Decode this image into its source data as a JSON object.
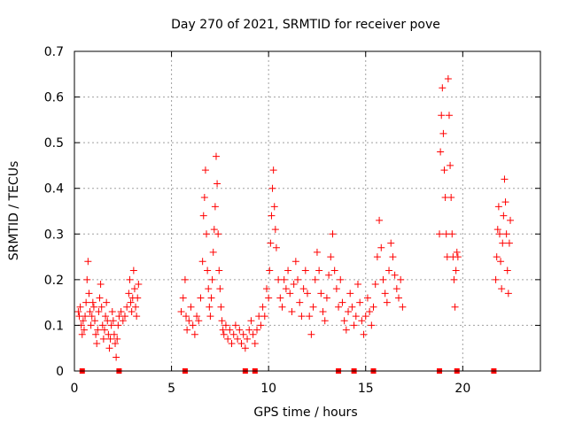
{
  "chart_data": {
    "type": "scatter",
    "title": "Day 270 of 2021, SRMTID for receiver pove",
    "xlabel": "GPS time / hours",
    "ylabel": "SRMTID / TECUs",
    "xlim": [
      0,
      24
    ],
    "ylim": [
      0,
      0.7
    ],
    "xticks": [
      0,
      5,
      10,
      15,
      20
    ],
    "yticks": [
      0,
      0.1,
      0.2,
      0.3,
      0.4,
      0.5,
      0.6,
      0.7
    ],
    "xtick_labels": [
      "0",
      "5",
      "10",
      "15",
      "20"
    ],
    "ytick_labels": [
      "0",
      "0.1",
      "0.2",
      "0.3",
      "0.4",
      "0.5",
      "0.6",
      "0.7"
    ],
    "grid": true,
    "marker": "plus",
    "color": "#ff0000",
    "series": [
      {
        "points": [
          [
            0.2,
            0.13
          ],
          [
            0.25,
            0.12
          ],
          [
            0.3,
            0.14
          ],
          [
            0.35,
            0.1
          ],
          [
            0.4,
            0.08
          ],
          [
            0.45,
            0.11
          ],
          [
            0.5,
            0.09
          ],
          [
            0.55,
            0.12
          ],
          [
            0.6,
            0.15
          ],
          [
            0.65,
            0.2
          ],
          [
            0.7,
            0.24
          ],
          [
            0.75,
            0.17
          ],
          [
            0.8,
            0.13
          ],
          [
            0.85,
            0.1
          ],
          [
            0.9,
            0.12
          ],
          [
            0.95,
            0.15
          ],
          [
            1.0,
            0.14
          ],
          [
            1.05,
            0.11
          ],
          [
            1.1,
            0.08
          ],
          [
            1.15,
            0.06
          ],
          [
            1.2,
            0.09
          ],
          [
            1.25,
            0.13
          ],
          [
            1.3,
            0.16
          ],
          [
            1.35,
            0.19
          ],
          [
            1.4,
            0.14
          ],
          [
            1.45,
            0.1
          ],
          [
            1.5,
            0.07
          ],
          [
            1.55,
            0.09
          ],
          [
            1.6,
            0.12
          ],
          [
            1.65,
            0.15
          ],
          [
            1.7,
            0.11
          ],
          [
            1.75,
            0.08
          ],
          [
            1.8,
            0.05
          ],
          [
            1.85,
            0.07
          ],
          [
            1.9,
            0.1
          ],
          [
            1.95,
            0.13
          ],
          [
            2.0,
            0.11
          ],
          [
            2.05,
            0.08
          ],
          [
            2.1,
            0.06
          ],
          [
            2.15,
            0.03
          ],
          [
            2.2,
            0.07
          ],
          [
            2.25,
            0.1
          ],
          [
            2.3,
            0.12
          ],
          [
            2.4,
            0.13
          ],
          [
            2.5,
            0.11
          ],
          [
            2.6,
            0.12
          ],
          [
            2.7,
            0.14
          ],
          [
            2.8,
            0.17
          ],
          [
            2.85,
            0.2
          ],
          [
            2.9,
            0.15
          ],
          [
            2.95,
            0.13
          ],
          [
            3.0,
            0.16
          ],
          [
            3.05,
            0.22
          ],
          [
            3.1,
            0.18
          ],
          [
            3.15,
            0.14
          ],
          [
            3.2,
            0.12
          ],
          [
            3.25,
            0.16
          ],
          [
            3.3,
            0.19
          ],
          [
            5.5,
            0.13
          ],
          [
            5.6,
            0.16
          ],
          [
            5.7,
            0.2
          ],
          [
            5.75,
            0.12
          ],
          [
            5.8,
            0.09
          ],
          [
            5.9,
            0.11
          ],
          [
            6.0,
            0.14
          ],
          [
            6.1,
            0.1
          ],
          [
            6.2,
            0.08
          ],
          [
            6.3,
            0.12
          ],
          [
            6.4,
            0.11
          ],
          [
            6.5,
            0.16
          ],
          [
            6.6,
            0.24
          ],
          [
            6.65,
            0.34
          ],
          [
            6.7,
            0.38
          ],
          [
            6.75,
            0.44
          ],
          [
            6.8,
            0.3
          ],
          [
            6.85,
            0.22
          ],
          [
            6.9,
            0.18
          ],
          [
            6.95,
            0.14
          ],
          [
            7.0,
            0.12
          ],
          [
            7.05,
            0.16
          ],
          [
            7.1,
            0.2
          ],
          [
            7.15,
            0.26
          ],
          [
            7.2,
            0.31
          ],
          [
            7.25,
            0.36
          ],
          [
            7.3,
            0.47
          ],
          [
            7.35,
            0.41
          ],
          [
            7.4,
            0.3
          ],
          [
            7.45,
            0.22
          ],
          [
            7.5,
            0.18
          ],
          [
            7.55,
            0.14
          ],
          [
            7.6,
            0.11
          ],
          [
            7.65,
            0.09
          ],
          [
            7.7,
            0.08
          ],
          [
            7.8,
            0.1
          ],
          [
            7.9,
            0.07
          ],
          [
            8.0,
            0.09
          ],
          [
            8.1,
            0.06
          ],
          [
            8.2,
            0.08
          ],
          [
            8.3,
            0.1
          ],
          [
            8.4,
            0.07
          ],
          [
            8.5,
            0.09
          ],
          [
            8.6,
            0.06
          ],
          [
            8.7,
            0.08
          ],
          [
            8.8,
            0.05
          ],
          [
            8.9,
            0.07
          ],
          [
            9.0,
            0.09
          ],
          [
            9.1,
            0.11
          ],
          [
            9.2,
            0.08
          ],
          [
            9.3,
            0.06
          ],
          [
            9.4,
            0.09
          ],
          [
            9.5,
            0.12
          ],
          [
            9.6,
            0.1
          ],
          [
            9.7,
            0.14
          ],
          [
            9.8,
            0.12
          ],
          [
            9.9,
            0.18
          ],
          [
            10.0,
            0.16
          ],
          [
            10.05,
            0.22
          ],
          [
            10.1,
            0.28
          ],
          [
            10.15,
            0.34
          ],
          [
            10.2,
            0.4
          ],
          [
            10.25,
            0.44
          ],
          [
            10.3,
            0.36
          ],
          [
            10.35,
            0.31
          ],
          [
            10.4,
            0.27
          ],
          [
            10.5,
            0.2
          ],
          [
            10.6,
            0.16
          ],
          [
            10.7,
            0.14
          ],
          [
            10.8,
            0.2
          ],
          [
            10.9,
            0.18
          ],
          [
            11.0,
            0.22
          ],
          [
            11.1,
            0.17
          ],
          [
            11.2,
            0.13
          ],
          [
            11.3,
            0.19
          ],
          [
            11.4,
            0.24
          ],
          [
            11.5,
            0.2
          ],
          [
            11.6,
            0.15
          ],
          [
            11.7,
            0.12
          ],
          [
            11.8,
            0.18
          ],
          [
            11.9,
            0.22
          ],
          [
            12.0,
            0.17
          ],
          [
            12.1,
            0.12
          ],
          [
            12.2,
            0.08
          ],
          [
            12.3,
            0.14
          ],
          [
            12.4,
            0.2
          ],
          [
            12.5,
            0.26
          ],
          [
            12.6,
            0.22
          ],
          [
            12.7,
            0.17
          ],
          [
            12.8,
            0.13
          ],
          [
            12.9,
            0.11
          ],
          [
            13.0,
            0.16
          ],
          [
            13.1,
            0.21
          ],
          [
            13.2,
            0.25
          ],
          [
            13.3,
            0.3
          ],
          [
            13.4,
            0.22
          ],
          [
            13.5,
            0.18
          ],
          [
            13.6,
            0.14
          ],
          [
            13.7,
            0.2
          ],
          [
            13.8,
            0.15
          ],
          [
            13.9,
            0.11
          ],
          [
            14.0,
            0.09
          ],
          [
            14.1,
            0.13
          ],
          [
            14.2,
            0.17
          ],
          [
            14.3,
            0.14
          ],
          [
            14.4,
            0.1
          ],
          [
            14.5,
            0.12
          ],
          [
            14.6,
            0.19
          ],
          [
            14.7,
            0.15
          ],
          [
            14.8,
            0.11
          ],
          [
            14.9,
            0.08
          ],
          [
            15.0,
            0.12
          ],
          [
            15.1,
            0.16
          ],
          [
            15.2,
            0.13
          ],
          [
            15.3,
            0.1
          ],
          [
            15.4,
            0.14
          ],
          [
            15.5,
            0.19
          ],
          [
            15.6,
            0.25
          ],
          [
            15.7,
            0.33
          ],
          [
            15.8,
            0.27
          ],
          [
            15.9,
            0.2
          ],
          [
            16.0,
            0.17
          ],
          [
            16.1,
            0.15
          ],
          [
            16.2,
            0.22
          ],
          [
            16.3,
            0.28
          ],
          [
            16.4,
            0.25
          ],
          [
            16.5,
            0.21
          ],
          [
            16.6,
            0.18
          ],
          [
            16.7,
            0.16
          ],
          [
            16.8,
            0.2
          ],
          [
            16.9,
            0.14
          ],
          [
            18.8,
            0.3
          ],
          [
            18.85,
            0.48
          ],
          [
            18.9,
            0.56
          ],
          [
            18.95,
            0.62
          ],
          [
            19.0,
            0.52
          ],
          [
            19.05,
            0.44
          ],
          [
            19.1,
            0.38
          ],
          [
            19.15,
            0.3
          ],
          [
            19.2,
            0.25
          ],
          [
            19.25,
            0.64
          ],
          [
            19.3,
            0.56
          ],
          [
            19.35,
            0.45
          ],
          [
            19.4,
            0.38
          ],
          [
            19.45,
            0.3
          ],
          [
            19.5,
            0.25
          ],
          [
            19.55,
            0.2
          ],
          [
            19.6,
            0.14
          ],
          [
            19.65,
            0.22
          ],
          [
            19.7,
            0.26
          ],
          [
            19.75,
            0.25
          ],
          [
            21.7,
            0.2
          ],
          [
            21.75,
            0.25
          ],
          [
            21.8,
            0.31
          ],
          [
            21.85,
            0.36
          ],
          [
            21.9,
            0.3
          ],
          [
            21.95,
            0.24
          ],
          [
            22.0,
            0.18
          ],
          [
            22.05,
            0.28
          ],
          [
            22.1,
            0.34
          ],
          [
            22.15,
            0.42
          ],
          [
            22.2,
            0.37
          ],
          [
            22.25,
            0.3
          ],
          [
            22.3,
            0.22
          ],
          [
            22.35,
            0.17
          ],
          [
            22.4,
            0.28
          ],
          [
            22.45,
            0.33
          ]
        ]
      }
    ],
    "baseline_markers_x": [
      0.4,
      2.3,
      5.7,
      8.8,
      9.3,
      13.6,
      14.4,
      15.4,
      18.8,
      19.7,
      21.6
    ]
  }
}
